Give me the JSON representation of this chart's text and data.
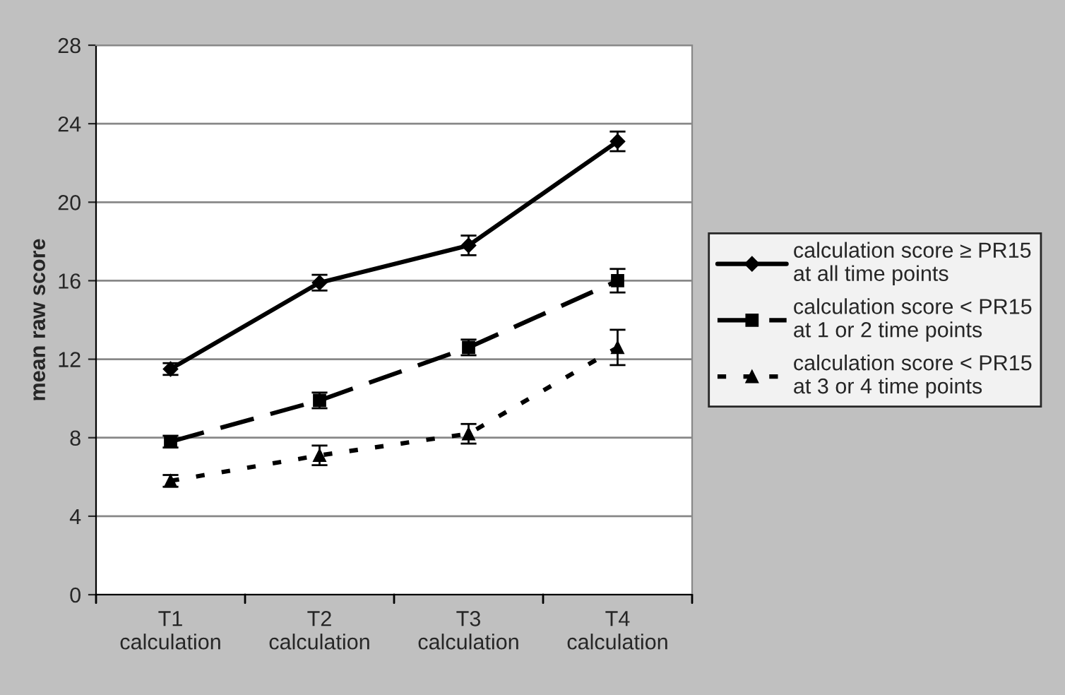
{
  "chart_data": {
    "type": "line",
    "ylabel": "mean raw score",
    "categories": [
      "T1\ncalculation",
      "T2\ncalculation",
      "T3\ncalculation",
      "T4\ncalculation"
    ],
    "series": [
      {
        "name": "calculation score ≥ PR15\nat all time points",
        "color": "#000000",
        "values": [
          11.5,
          15.9,
          17.8,
          23.1
        ],
        "errors": [
          0.3,
          0.4,
          0.5,
          0.5
        ],
        "marker": "diamond",
        "line_style": "solid"
      },
      {
        "name": "calculation score < PR15\nat 1 or 2 time points",
        "color": "#000000",
        "values": [
          7.8,
          9.9,
          12.6,
          16.0
        ],
        "errors": [
          0.3,
          0.4,
          0.4,
          0.6
        ],
        "marker": "square",
        "line_style": "dashed"
      },
      {
        "name": "calculation score < PR15\nat 3 or 4 time points",
        "color": "#000000",
        "values": [
          5.8,
          7.1,
          8.2,
          12.6
        ],
        "errors": [
          0.3,
          0.5,
          0.5,
          0.9
        ],
        "marker": "triangle",
        "line_style": "dotted"
      }
    ],
    "ylim": [
      0,
      28
    ],
    "yticks": [
      0,
      4,
      8,
      12,
      16,
      20,
      24,
      28
    ],
    "grid": "y",
    "legend": "right"
  }
}
